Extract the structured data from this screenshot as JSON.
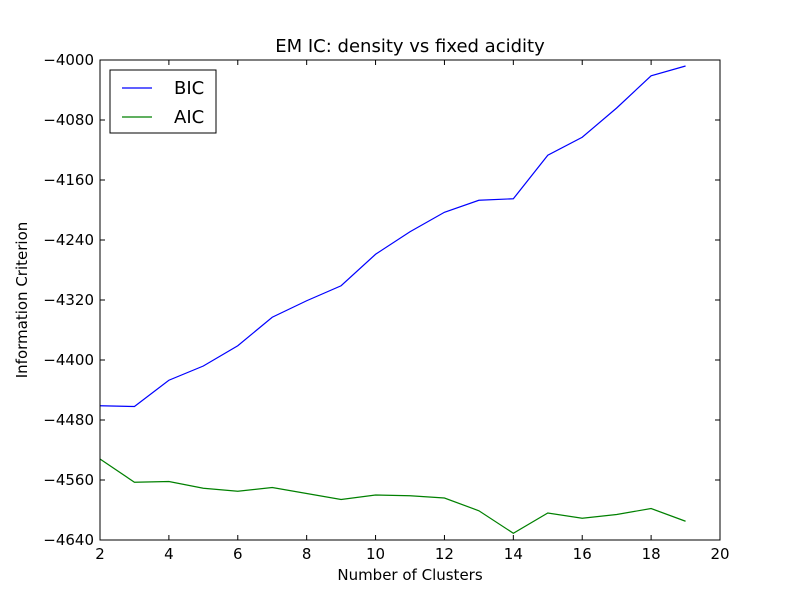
{
  "chart_data": {
    "type": "line",
    "title": "EM IC: density vs fixed acidity",
    "xlabel": "Number of Clusters",
    "ylabel": "Information Criterion",
    "xlim": [
      2,
      20
    ],
    "ylim": [
      -4640,
      -4000
    ],
    "xticks": [
      2,
      4,
      6,
      8,
      10,
      12,
      14,
      16,
      18,
      20
    ],
    "yticks": [
      -4640,
      -4560,
      -4480,
      -4400,
      -4320,
      -4240,
      -4160,
      -4080,
      -4000
    ],
    "xtick_labels": [
      "2",
      "4",
      "6",
      "8",
      "10",
      "12",
      "14",
      "16",
      "18",
      "20"
    ],
    "ytick_labels": [
      "−4640",
      "−4560",
      "−4480",
      "−4400",
      "−4320",
      "−4240",
      "−4160",
      "−4080",
      "−4000"
    ],
    "grid": false,
    "legend_position": "top-left",
    "x": [
      2,
      3,
      4,
      5,
      6,
      7,
      8,
      9,
      10,
      11,
      12,
      13,
      14,
      15,
      16,
      17,
      18,
      19
    ],
    "series": [
      {
        "name": "BIC",
        "color": "#0000ff",
        "values": [
          -4461,
          -4462,
          -4427,
          -4408,
          -4381,
          -4343,
          -4321,
          -4301,
          -4259,
          -4229,
          -4203,
          -4187,
          -4185,
          -4127,
          -4103,
          -4064,
          -4021,
          -4008
        ]
      },
      {
        "name": "AIC",
        "color": "#008000",
        "values": [
          -4532,
          -4563,
          -4562,
          -4571,
          -4575,
          -4570,
          -4578,
          -4586,
          -4580,
          -4581,
          -4584,
          -4601,
          -4631,
          -4604,
          -4611,
          -4606,
          -4598,
          -4615
        ]
      }
    ]
  }
}
